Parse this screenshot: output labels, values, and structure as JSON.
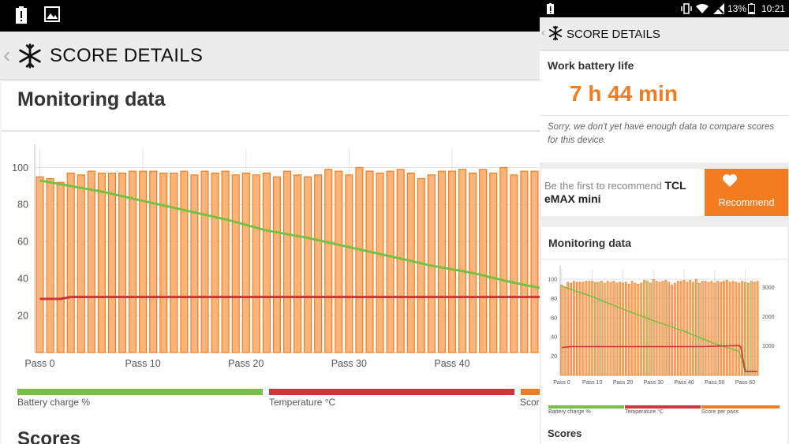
{
  "colors": {
    "battery": "#76c043",
    "temperature": "#d0343a",
    "score": "#f47c20",
    "score_fill": "#fbb57a"
  },
  "left": {
    "app_title": "SCORE DETAILS",
    "monitoring_title": "Monitoring data",
    "scores_title": "Scores",
    "chart_data": {
      "type": "bar",
      "y_ticks": [
        "100",
        "80",
        "60",
        "40",
        "20"
      ],
      "x_ticks": [
        "Pass 0",
        "Pass 10",
        "Pass 20",
        "Pass 30",
        "Pass 40"
      ],
      "ylim": [
        0,
        110
      ],
      "xlim": [
        -0.5,
        48.5
      ],
      "series": [
        {
          "name": "Battery charge %",
          "type": "line",
          "x": [
            0,
            3,
            6,
            10,
            14,
            18,
            20,
            22,
            26,
            30,
            34,
            38,
            42,
            45,
            47.5,
            48.5
          ],
          "values": [
            93,
            90,
            87,
            82,
            77,
            72,
            69,
            66,
            62,
            57,
            52,
            47,
            43,
            39,
            36,
            35
          ]
        },
        {
          "name": "Temperature °C",
          "type": "line",
          "x": [
            0,
            2,
            3,
            48.5
          ],
          "values": [
            29,
            29,
            30,
            30
          ]
        },
        {
          "name": "Score per pass",
          "type": "bar",
          "values": [
            95,
            94,
            92,
            97,
            96,
            98,
            97,
            97,
            97,
            98,
            98,
            98,
            97,
            97,
            98,
            96,
            98,
            97,
            98,
            96,
            97,
            96,
            97,
            95,
            98,
            96,
            95,
            96,
            99,
            98,
            96,
            100,
            98,
            97,
            98,
            99,
            97,
            94,
            96,
            98,
            98,
            99,
            97,
            99,
            97,
            100,
            96,
            98,
            98
          ]
        }
      ]
    },
    "legend": [
      "Battery charge %",
      "Temperature °C",
      "Scor"
    ]
  },
  "right": {
    "status": {
      "battery_pct": "13%",
      "time": "10:21"
    },
    "app_title": "SCORE DETAILS",
    "work_battery": {
      "title": "Work battery life",
      "value": "7 h 44 min",
      "note": "Sorry, we don't yet have enough data to compare scores for this device."
    },
    "recommend": {
      "prefix": "Be the first to recommend",
      "device": "TCL eMAX mini",
      "button": "Recommend"
    },
    "monitoring_title": "Monitoring data",
    "scores_title": "Scores",
    "chart_data": {
      "type": "bar",
      "y_ticks": [
        "100",
        "80",
        "60",
        "40",
        "20"
      ],
      "y2_ticks": [
        "3000",
        "2000",
        "1000"
      ],
      "x_ticks": [
        "Pass 0",
        "Pass 10",
        "Pass 20",
        "Pass 30",
        "Pass 40",
        "Pass 50",
        "Pass 60"
      ],
      "ylim": [
        0,
        110
      ],
      "xlim": [
        -0.5,
        64.5
      ],
      "series": [
        {
          "name": "Battery charge %",
          "type": "line",
          "x": [
            0,
            10,
            20,
            30,
            40,
            50,
            58,
            60,
            62,
            64
          ],
          "values": [
            93,
            82,
            69,
            57,
            46,
            33,
            25,
            4,
            4,
            4
          ]
        },
        {
          "name": "Temperature °C",
          "type": "line",
          "x": [
            0,
            3,
            46,
            58,
            58.5,
            60,
            64
          ],
          "values": [
            29,
            30,
            30,
            31,
            30,
            4,
            4
          ]
        },
        {
          "name": "Score per pass",
          "type": "bar",
          "values": [
            94,
            92,
            97,
            96,
            98,
            97,
            97,
            97,
            98,
            98,
            98,
            97,
            97,
            98,
            96,
            98,
            97,
            98,
            96,
            97,
            96,
            97,
            95,
            98,
            96,
            95,
            96,
            99,
            98,
            96,
            100,
            98,
            97,
            98,
            99,
            97,
            94,
            96,
            98,
            98,
            99,
            97,
            99,
            97,
            100,
            96,
            98,
            98,
            97,
            98,
            96,
            98,
            97,
            98,
            99,
            97,
            98,
            97,
            96,
            98,
            97,
            96,
            98,
            97,
            98
          ]
        }
      ]
    },
    "legend": [
      "Battery charge %",
      "Temperature °C",
      "Score per pass"
    ]
  }
}
